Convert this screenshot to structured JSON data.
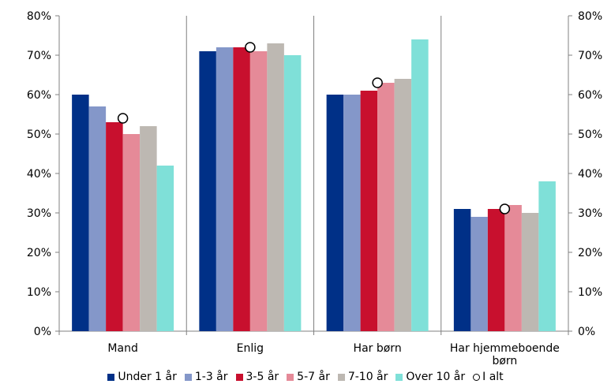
{
  "chart_data": {
    "type": "bar",
    "categories": [
      "Mand",
      "Enlig",
      "Har børn",
      "Har hjemmeboende børn"
    ],
    "category_lines": [
      [
        "Mand"
      ],
      [
        "Enlig"
      ],
      [
        "Har børn"
      ],
      [
        "Har hjemmeboende",
        "børn"
      ]
    ],
    "series": [
      {
        "name": "Under 1 år",
        "color": "#003087",
        "values": [
          60,
          71,
          60,
          31
        ]
      },
      {
        "name": "1-3 år",
        "color": "#8497C9",
        "values": [
          57,
          72,
          60,
          29
        ]
      },
      {
        "name": "3-5 år",
        "color": "#C8102E",
        "values": [
          53,
          72,
          61,
          31
        ]
      },
      {
        "name": "5-7 år",
        "color": "#E58A98",
        "values": [
          50,
          71,
          63,
          32
        ]
      },
      {
        "name": "7-10 år",
        "color": "#BDB8B2",
        "values": [
          52,
          73,
          64,
          30
        ]
      },
      {
        "name": "Over 10 år",
        "color": "#7FE0D8",
        "values": [
          42,
          70,
          74,
          38
        ]
      }
    ],
    "markers": {
      "name": "I alt",
      "style": "circle",
      "values": [
        54,
        72,
        63,
        31
      ]
    },
    "ylim": [
      0,
      80
    ],
    "yticks": [
      "0%",
      "10%",
      "20%",
      "30%",
      "40%",
      "50%",
      "60%",
      "70%",
      "80%"
    ],
    "secondary_axis": true,
    "grid": false,
    "legend_position": "bottom"
  }
}
